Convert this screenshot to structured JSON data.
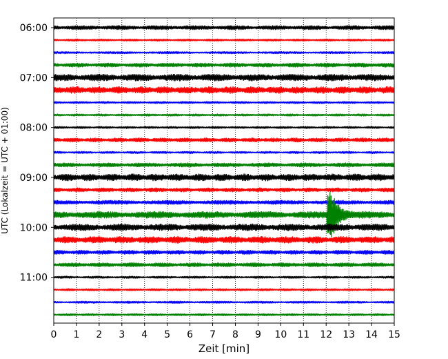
{
  "chart_data": {
    "type": "line",
    "title": "",
    "xlabel": "Zeit  [min]",
    "ylabel": "UTC (Lokalzeit = UTC + 01:00)",
    "xlim": [
      0,
      15
    ],
    "x_ticks": [
      0,
      1,
      2,
      3,
      4,
      5,
      6,
      7,
      8,
      9,
      10,
      11,
      12,
      13,
      14,
      15
    ],
    "y_tick_labels": [
      "06:00",
      "07:00",
      "08:00",
      "09:00",
      "10:00",
      "11:00"
    ],
    "grid": "vertical dotted",
    "row_interval_minutes": 15,
    "row_start": "06:00",
    "series_colors": [
      "#000000",
      "#ff0000",
      "#0000ff",
      "#008000"
    ],
    "rows": [
      {
        "start": "06:00",
        "color": "#000000",
        "amplitude": "medium"
      },
      {
        "start": "06:15",
        "color": "#ff0000",
        "amplitude": "low"
      },
      {
        "start": "06:30",
        "color": "#0000ff",
        "amplitude": "low"
      },
      {
        "start": "06:45",
        "color": "#008000",
        "amplitude": "medium"
      },
      {
        "start": "07:00",
        "color": "#000000",
        "amplitude": "high"
      },
      {
        "start": "07:15",
        "color": "#ff0000",
        "amplitude": "high"
      },
      {
        "start": "07:30",
        "color": "#0000ff",
        "amplitude": "low"
      },
      {
        "start": "07:45",
        "color": "#008000",
        "amplitude": "low"
      },
      {
        "start": "08:00",
        "color": "#000000",
        "amplitude": "low"
      },
      {
        "start": "08:15",
        "color": "#ff0000",
        "amplitude": "medium"
      },
      {
        "start": "08:30",
        "color": "#0000ff",
        "amplitude": "low"
      },
      {
        "start": "08:45",
        "color": "#008000",
        "amplitude": "medium"
      },
      {
        "start": "09:00",
        "color": "#000000",
        "amplitude": "high"
      },
      {
        "start": "09:15",
        "color": "#ff0000",
        "amplitude": "medium"
      },
      {
        "start": "09:30",
        "color": "#0000ff",
        "amplitude": "medium"
      },
      {
        "start": "09:45",
        "color": "#008000",
        "amplitude": "high",
        "event_at_min": 12.1
      },
      {
        "start": "10:00",
        "color": "#000000",
        "amplitude": "high"
      },
      {
        "start": "10:15",
        "color": "#ff0000",
        "amplitude": "high"
      },
      {
        "start": "10:30",
        "color": "#0000ff",
        "amplitude": "medium"
      },
      {
        "start": "10:45",
        "color": "#008000",
        "amplitude": "medium"
      },
      {
        "start": "11:00",
        "color": "#000000",
        "amplitude": "low"
      },
      {
        "start": "11:15",
        "color": "#ff0000",
        "amplitude": "low"
      },
      {
        "start": "11:30",
        "color": "#0000ff",
        "amplitude": "low"
      },
      {
        "start": "11:45",
        "color": "#008000",
        "amplitude": "low"
      }
    ]
  }
}
